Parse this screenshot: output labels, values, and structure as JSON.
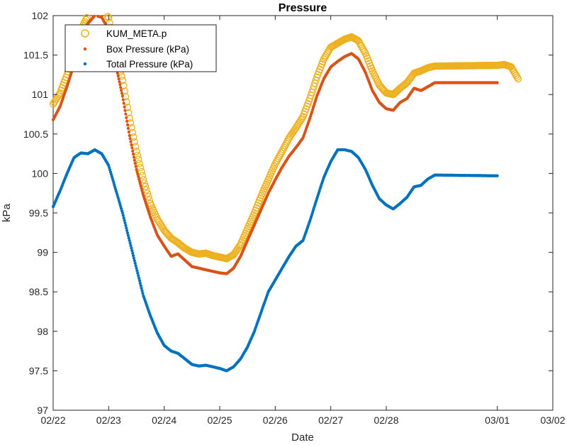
{
  "chart_data": {
    "type": "scatter",
    "title": "Pressure",
    "xlabel": "Date",
    "ylabel": "kPa",
    "xlim": [
      "02/22",
      "03/02"
    ],
    "ylim": [
      97,
      102
    ],
    "x_ticks": [
      "02/22",
      "02/23",
      "02/24",
      "02/25",
      "02/26",
      "02/27",
      "02/28",
      "03/01",
      "03/02"
    ],
    "y_ticks": [
      "97",
      "97.5",
      "98",
      "98.5",
      "99",
      "99.5",
      "100",
      "100.5",
      "101",
      "101.5",
      "102"
    ],
    "legend_position": "top-left",
    "grid": false,
    "series": [
      {
        "name": "KUM_META.p",
        "color": "#EDB120",
        "marker": "circle",
        "points": [
          [
            "02/22 00:00",
            100.88
          ],
          [
            "02/22 03:00",
            101.02
          ],
          [
            "02/22 06:00",
            101.25
          ],
          [
            "02/22 09:00",
            101.52
          ],
          [
            "02/22 12:00",
            101.82
          ],
          [
            "02/22 15:00",
            102.0
          ],
          [
            "02/22 18:00",
            102.1
          ],
          [
            "02/22 21:00",
            102.1
          ],
          [
            "02/23 00:00",
            101.97
          ],
          [
            "02/23 03:00",
            101.55
          ],
          [
            "02/23 06:00",
            101.18
          ],
          [
            "02/23 09:00",
            100.7
          ],
          [
            "02/23 12:00",
            100.28
          ],
          [
            "02/23 15:00",
            99.92
          ],
          [
            "02/23 18:00",
            99.62
          ],
          [
            "02/23 21:00",
            99.42
          ],
          [
            "02/24 00:00",
            99.28
          ],
          [
            "02/24 03:00",
            99.18
          ],
          [
            "02/24 06:00",
            99.12
          ],
          [
            "02/24 09:00",
            99.05
          ],
          [
            "02/24 12:00",
            99.0
          ],
          [
            "02/24 15:00",
            98.98
          ],
          [
            "02/24 18:00",
            98.99
          ],
          [
            "02/24 21:00",
            98.96
          ],
          [
            "02/25 00:00",
            98.94
          ],
          [
            "02/25 03:00",
            98.92
          ],
          [
            "02/25 06:00",
            98.97
          ],
          [
            "02/25 09:00",
            99.1
          ],
          [
            "02/25 12:00",
            99.3
          ],
          [
            "02/25 15:00",
            99.5
          ],
          [
            "02/25 18:00",
            99.72
          ],
          [
            "02/25 21:00",
            99.92
          ],
          [
            "02/26 00:00",
            100.12
          ],
          [
            "02/26 03:00",
            100.28
          ],
          [
            "02/26 06:00",
            100.45
          ],
          [
            "02/26 09:00",
            100.58
          ],
          [
            "02/26 12:00",
            100.72
          ],
          [
            "02/26 15:00",
            100.95
          ],
          [
            "02/26 18:00",
            101.22
          ],
          [
            "02/26 21:00",
            101.45
          ],
          [
            "02/27 00:00",
            101.6
          ],
          [
            "02/27 03:00",
            101.65
          ],
          [
            "02/27 06:00",
            101.7
          ],
          [
            "02/27 09:00",
            101.73
          ],
          [
            "02/27 12:00",
            101.68
          ],
          [
            "02/27 15:00",
            101.52
          ],
          [
            "02/27 18:00",
            101.3
          ],
          [
            "02/27 21:00",
            101.12
          ],
          [
            "02/28 00:00",
            101.02
          ],
          [
            "02/28 03:00",
            101.0
          ],
          [
            "02/28 06:00",
            101.08
          ],
          [
            "02/28 09:00",
            101.15
          ],
          [
            "02/28 12:00",
            101.27
          ],
          [
            "02/28 15:00",
            101.3
          ],
          [
            "02/28 18:00",
            101.34
          ],
          [
            "02/28 21:00",
            101.36
          ],
          [
            "03/01 00:00",
            101.37
          ],
          [
            "03/01 03:00",
            101.38
          ],
          [
            "03/01 06:00",
            101.35
          ],
          [
            "03/01 09:00",
            101.2
          ]
        ]
      },
      {
        "name": "Box Pressure (kPa)",
        "color": "#D95319",
        "marker": "dot",
        "points": [
          [
            "02/22 00:00",
            100.68
          ],
          [
            "02/22 03:00",
            100.85
          ],
          [
            "02/22 06:00",
            101.1
          ],
          [
            "02/22 09:00",
            101.38
          ],
          [
            "02/22 12:00",
            101.7
          ],
          [
            "02/22 15:00",
            101.9
          ],
          [
            "02/22 18:00",
            102.0
          ],
          [
            "02/22 21:00",
            101.98
          ],
          [
            "02/23 00:00",
            101.82
          ],
          [
            "02/23 03:00",
            101.38
          ],
          [
            "02/23 06:00",
            100.98
          ],
          [
            "02/23 09:00",
            100.48
          ],
          [
            "02/23 12:00",
            100.05
          ],
          [
            "02/23 15:00",
            99.72
          ],
          [
            "02/23 18:00",
            99.45
          ],
          [
            "02/23 21:00",
            99.22
          ],
          [
            "02/24 00:00",
            99.08
          ],
          [
            "02/24 03:00",
            98.95
          ],
          [
            "02/24 06:00",
            98.98
          ],
          [
            "02/24 09:00",
            98.9
          ],
          [
            "02/24 12:00",
            98.82
          ],
          [
            "02/24 15:00",
            98.8
          ],
          [
            "02/24 18:00",
            98.78
          ],
          [
            "02/24 21:00",
            98.76
          ],
          [
            "02/25 00:00",
            98.74
          ],
          [
            "02/25 03:00",
            98.73
          ],
          [
            "02/25 06:00",
            98.8
          ],
          [
            "02/25 09:00",
            98.95
          ],
          [
            "02/25 12:00",
            99.15
          ],
          [
            "02/25 15:00",
            99.35
          ],
          [
            "02/25 18:00",
            99.55
          ],
          [
            "02/25 21:00",
            99.75
          ],
          [
            "02/26 00:00",
            99.92
          ],
          [
            "02/26 03:00",
            100.08
          ],
          [
            "02/26 06:00",
            100.22
          ],
          [
            "02/26 09:00",
            100.33
          ],
          [
            "02/26 12:00",
            100.45
          ],
          [
            "02/26 15:00",
            100.7
          ],
          [
            "02/26 18:00",
            100.98
          ],
          [
            "02/26 21:00",
            101.2
          ],
          [
            "02/27 00:00",
            101.35
          ],
          [
            "02/27 03:00",
            101.42
          ],
          [
            "02/27 06:00",
            101.48
          ],
          [
            "02/27 09:00",
            101.52
          ],
          [
            "02/27 12:00",
            101.45
          ],
          [
            "02/27 15:00",
            101.28
          ],
          [
            "02/27 18:00",
            101.05
          ],
          [
            "02/27 21:00",
            100.9
          ],
          [
            "02/28 00:00",
            100.82
          ],
          [
            "02/28 03:00",
            100.8
          ],
          [
            "02/28 06:00",
            100.9
          ],
          [
            "02/28 09:00",
            100.95
          ],
          [
            "02/28 12:00",
            101.08
          ],
          [
            "02/28 15:00",
            101.05
          ],
          [
            "02/28 18:00",
            101.1
          ],
          [
            "02/28 21:00",
            101.15
          ],
          [
            "03/01 00:00",
            101.15
          ]
        ]
      },
      {
        "name": "Total Pressure (kPa)",
        "color": "#0072BD",
        "marker": "dot",
        "points": [
          [
            "02/22 00:00",
            99.58
          ],
          [
            "02/22 03:00",
            99.78
          ],
          [
            "02/22 06:00",
            100.0
          ],
          [
            "02/22 09:00",
            100.2
          ],
          [
            "02/22 12:00",
            100.26
          ],
          [
            "02/22 15:00",
            100.25
          ],
          [
            "02/22 18:00",
            100.3
          ],
          [
            "02/22 21:00",
            100.25
          ],
          [
            "02/23 00:00",
            100.1
          ],
          [
            "02/23 03:00",
            99.8
          ],
          [
            "02/23 06:00",
            99.5
          ],
          [
            "02/23 09:00",
            99.15
          ],
          [
            "02/23 12:00",
            98.8
          ],
          [
            "02/23 15:00",
            98.45
          ],
          [
            "02/23 18:00",
            98.2
          ],
          [
            "02/23 21:00",
            97.98
          ],
          [
            "02/24 00:00",
            97.82
          ],
          [
            "02/24 03:00",
            97.75
          ],
          [
            "02/24 06:00",
            97.72
          ],
          [
            "02/24 09:00",
            97.65
          ],
          [
            "02/24 12:00",
            97.58
          ],
          [
            "02/24 15:00",
            97.56
          ],
          [
            "02/24 18:00",
            97.57
          ],
          [
            "02/24 21:00",
            97.55
          ],
          [
            "02/25 00:00",
            97.53
          ],
          [
            "02/25 03:00",
            97.5
          ],
          [
            "02/25 06:00",
            97.55
          ],
          [
            "02/25 09:00",
            97.65
          ],
          [
            "02/25 12:00",
            97.8
          ],
          [
            "02/25 15:00",
            98.0
          ],
          [
            "02/25 18:00",
            98.25
          ],
          [
            "02/25 21:00",
            98.5
          ],
          [
            "02/26 00:00",
            98.65
          ],
          [
            "02/26 03:00",
            98.8
          ],
          [
            "02/26 06:00",
            98.95
          ],
          [
            "02/26 09:00",
            99.08
          ],
          [
            "02/26 12:00",
            99.15
          ],
          [
            "02/26 15:00",
            99.4
          ],
          [
            "02/26 18:00",
            99.68
          ],
          [
            "02/26 21:00",
            99.95
          ],
          [
            "02/27 00:00",
            100.15
          ],
          [
            "02/27 03:00",
            100.3
          ],
          [
            "02/27 06:00",
            100.3
          ],
          [
            "02/27 09:00",
            100.28
          ],
          [
            "02/27 12:00",
            100.2
          ],
          [
            "02/27 15:00",
            100.05
          ],
          [
            "02/27 18:00",
            99.85
          ],
          [
            "02/27 21:00",
            99.68
          ],
          [
            "02/28 00:00",
            99.6
          ],
          [
            "02/28 03:00",
            99.55
          ],
          [
            "02/28 06:00",
            99.62
          ],
          [
            "02/28 09:00",
            99.7
          ],
          [
            "02/28 12:00",
            99.83
          ],
          [
            "02/28 15:00",
            99.85
          ],
          [
            "02/28 18:00",
            99.93
          ],
          [
            "02/28 21:00",
            99.98
          ],
          [
            "03/01 00:00",
            99.97
          ]
        ]
      }
    ]
  }
}
